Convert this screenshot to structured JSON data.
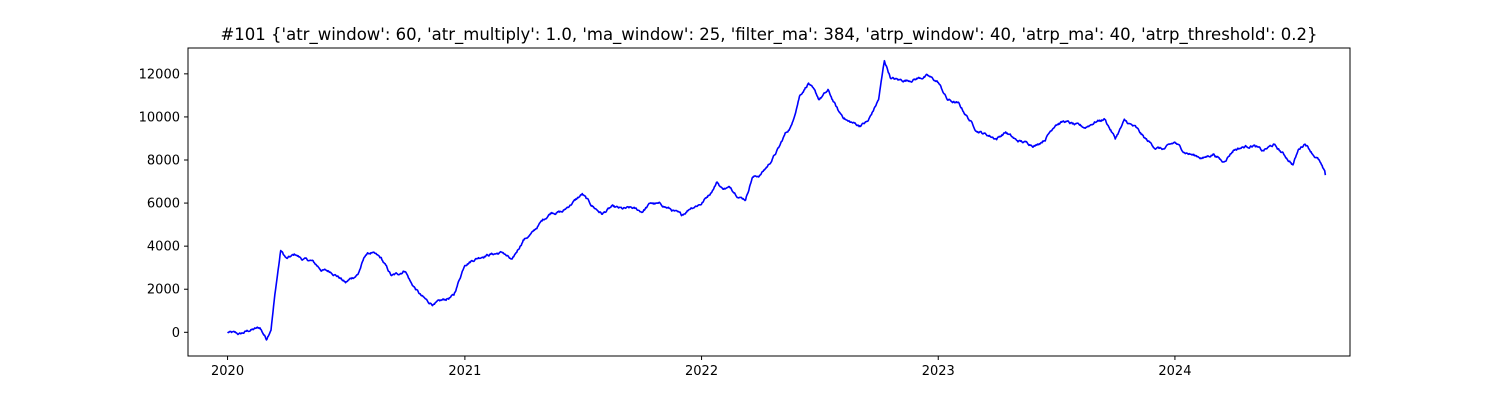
{
  "chart_data": {
    "type": "line",
    "title": "#101 {'atr_window': 60, 'atr_multiply': 1.0, 'ma_window': 25, 'filter_ma': 384, 'atrp_window': 40, 'atrp_ma': 40, 'atrp_threshold': 0.2}",
    "xlabel": "",
    "ylabel": "",
    "xlim": [
      "2019-11-01",
      "2024-09-27"
    ],
    "ylim": [
      -1100,
      13200
    ],
    "x_ticks": [
      "2020",
      "2021",
      "2022",
      "2023",
      "2024"
    ],
    "y_ticks": [
      0,
      2000,
      4000,
      6000,
      8000,
      10000,
      12000
    ],
    "y_tick_labels": [
      "0",
      "2000",
      "4000",
      "6000",
      "8000",
      "10000",
      "12000"
    ],
    "grid": false,
    "legend": "none",
    "series": [
      {
        "color": "#0000ff",
        "x": [
          "2020-01-01",
          "2020-01-20",
          "2020-02-05",
          "2020-02-20",
          "2020-03-01",
          "2020-03-08",
          "2020-03-15",
          "2020-03-23",
          "2020-04-01",
          "2020-04-15",
          "2020-04-25",
          "2020-05-10",
          "2020-05-25",
          "2020-06-10",
          "2020-06-20",
          "2020-07-01",
          "2020-07-10",
          "2020-07-20",
          "2020-08-01",
          "2020-08-10",
          "2020-08-25",
          "2020-09-10",
          "2020-09-20",
          "2020-10-01",
          "2020-10-10",
          "2020-10-25",
          "2020-11-05",
          "2020-11-15",
          "2020-12-01",
          "2020-12-15",
          "2021-01-01",
          "2021-01-15",
          "2021-02-01",
          "2021-02-15",
          "2021-03-01",
          "2021-03-15",
          "2021-04-01",
          "2021-04-15",
          "2021-05-01",
          "2021-05-15",
          "2021-06-01",
          "2021-06-15",
          "2021-07-01",
          "2021-07-15",
          "2021-08-01",
          "2021-08-15",
          "2021-09-01",
          "2021-09-15",
          "2021-10-01",
          "2021-10-15",
          "2021-11-01",
          "2021-11-15",
          "2021-12-01",
          "2021-12-15",
          "2022-01-01",
          "2022-01-15",
          "2022-01-25",
          "2022-02-01",
          "2022-02-15",
          "2022-03-01",
          "2022-03-10",
          "2022-03-20",
          "2022-04-01",
          "2022-04-15",
          "2022-05-01",
          "2022-05-10",
          "2022-05-20",
          "2022-06-01",
          "2022-06-15",
          "2022-07-01",
          "2022-07-15",
          "2022-08-01",
          "2022-08-15",
          "2022-09-01",
          "2022-09-15",
          "2022-10-01",
          "2022-10-10",
          "2022-10-20",
          "2022-11-01",
          "2022-11-15",
          "2022-12-01",
          "2022-12-15",
          "2023-01-01",
          "2023-01-15",
          "2023-02-01",
          "2023-02-15",
          "2023-03-01",
          "2023-03-15",
          "2023-04-01",
          "2023-04-15",
          "2023-05-01",
          "2023-05-15",
          "2023-06-01",
          "2023-06-15",
          "2023-07-01",
          "2023-07-15",
          "2023-08-01",
          "2023-08-15",
          "2023-09-01",
          "2023-09-15",
          "2023-10-01",
          "2023-10-15",
          "2023-11-01",
          "2023-11-15",
          "2023-12-01",
          "2023-12-15",
          "2024-01-01",
          "2024-01-15",
          "2024-02-01",
          "2024-02-15",
          "2024-03-01",
          "2024-03-15",
          "2024-04-01",
          "2024-04-15",
          "2024-05-01",
          "2024-05-15",
          "2024-06-01",
          "2024-06-15",
          "2024-07-01",
          "2024-07-10",
          "2024-07-20",
          "2024-08-01",
          "2024-08-10",
          "2024-08-20"
        ],
        "y": [
          0,
          -100,
          100,
          200,
          -300,
          200,
          2000,
          3800,
          3400,
          3600,
          3400,
          3300,
          2900,
          2800,
          2600,
          2300,
          2500,
          2700,
          3600,
          3700,
          3400,
          2600,
          2700,
          2900,
          2300,
          1700,
          1400,
          1300,
          1500,
          1700,
          3200,
          3400,
          3600,
          3650,
          3700,
          3300,
          4300,
          4600,
          5200,
          5600,
          5600,
          6000,
          6400,
          5900,
          5500,
          5800,
          5700,
          5750,
          5600,
          6000,
          5900,
          5700,
          5400,
          5800,
          6000,
          6500,
          7000,
          6700,
          6700,
          6300,
          6200,
          7200,
          7300,
          7800,
          8600,
          9200,
          9600,
          11000,
          11600,
          10800,
          11200,
          10200,
          9800,
          9600,
          9800,
          10800,
          12600,
          11800,
          11700,
          11700,
          11800,
          11900,
          11600,
          10800,
          10600,
          10000,
          9400,
          9200,
          9000,
          9300,
          8900,
          8800,
          8700,
          9000,
          9700,
          9800,
          9600,
          9500,
          9800,
          9900,
          9000,
          9800,
          9500,
          9000,
          8600,
          8500,
          8800,
          8400,
          8200,
          8100,
          8300,
          7900,
          8500,
          8600,
          8700,
          8400,
          8700,
          8300,
          7800,
          8500,
          8800,
          8300,
          8000,
          7300
        ]
      }
    ]
  }
}
